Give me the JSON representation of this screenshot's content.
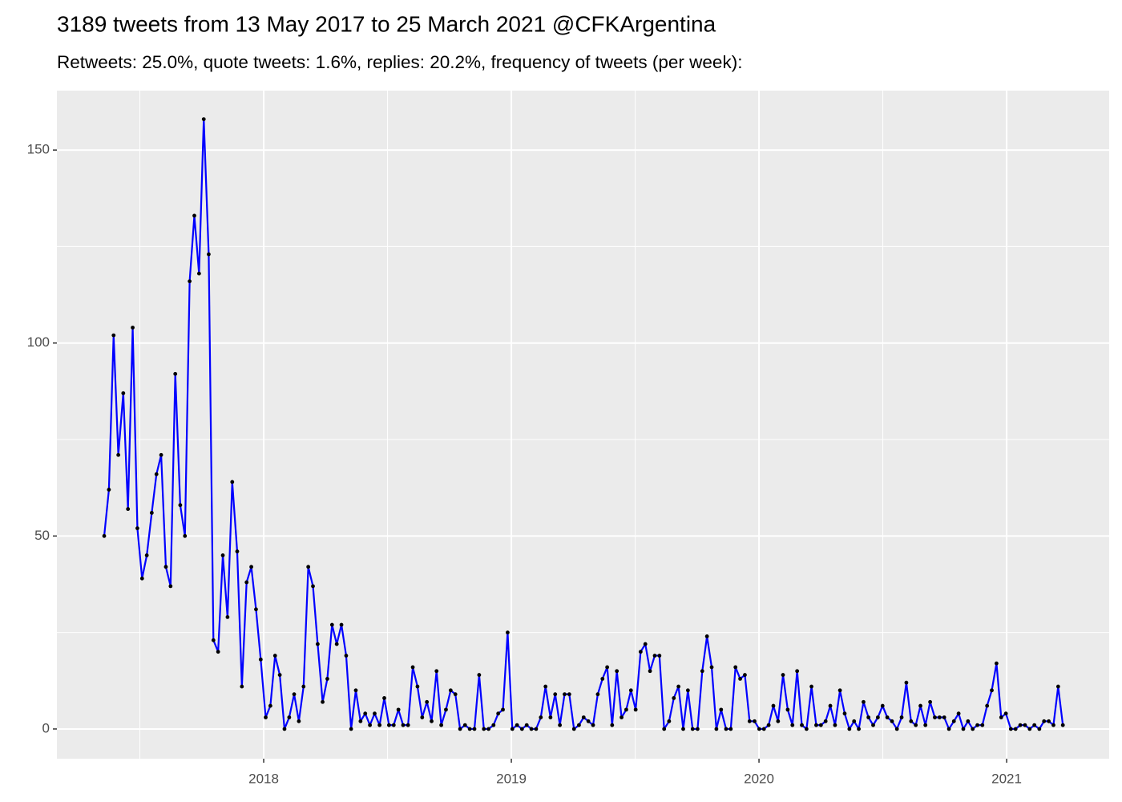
{
  "chart_data": {
    "type": "line",
    "title": "3189 tweets from 13 May 2017 to 25 March 2021 @CFKArgentina",
    "subtitle": "Retweets: 25.0%, quote tweets: 1.6%, replies: 20.2%, frequency of tweets (per week):",
    "x": [
      2017.356,
      2017.375,
      2017.394,
      2017.413,
      2017.433,
      2017.452,
      2017.471,
      2017.49,
      2017.509,
      2017.528,
      2017.548,
      2017.567,
      2017.586,
      2017.605,
      2017.624,
      2017.643,
      2017.663,
      2017.682,
      2017.701,
      2017.72,
      2017.739,
      2017.758,
      2017.778,
      2017.797,
      2017.816,
      2017.835,
      2017.854,
      2017.873,
      2017.893,
      2017.912,
      2017.931,
      2017.95,
      2017.969,
      2017.988,
      2018.008,
      2018.027,
      2018.046,
      2018.065,
      2018.084,
      2018.103,
      2018.123,
      2018.142,
      2018.161,
      2018.18,
      2018.199,
      2018.218,
      2018.238,
      2018.257,
      2018.276,
      2018.295,
      2018.314,
      2018.333,
      2018.353,
      2018.372,
      2018.391,
      2018.41,
      2018.429,
      2018.448,
      2018.468,
      2018.487,
      2018.506,
      2018.525,
      2018.544,
      2018.563,
      2018.583,
      2018.602,
      2018.621,
      2018.64,
      2018.659,
      2018.678,
      2018.698,
      2018.717,
      2018.736,
      2018.755,
      2018.774,
      2018.793,
      2018.813,
      2018.832,
      2018.851,
      2018.87,
      2018.889,
      2018.908,
      2018.928,
      2018.947,
      2018.966,
      2018.985,
      2019.004,
      2019.023,
      2019.043,
      2019.062,
      2019.081,
      2019.1,
      2019.119,
      2019.138,
      2019.158,
      2019.177,
      2019.196,
      2019.215,
      2019.234,
      2019.253,
      2019.273,
      2019.292,
      2019.311,
      2019.33,
      2019.349,
      2019.368,
      2019.387,
      2019.407,
      2019.426,
      2019.445,
      2019.464,
      2019.483,
      2019.502,
      2019.522,
      2019.541,
      2019.56,
      2019.579,
      2019.598,
      2019.617,
      2019.637,
      2019.656,
      2019.675,
      2019.694,
      2019.713,
      2019.732,
      2019.752,
      2019.771,
      2019.79,
      2019.809,
      2019.828,
      2019.847,
      2019.867,
      2019.886,
      2019.905,
      2019.924,
      2019.943,
      2019.962,
      2019.982,
      2020.001,
      2020.02,
      2020.039,
      2020.058,
      2020.077,
      2020.097,
      2020.116,
      2020.135,
      2020.154,
      2020.173,
      2020.192,
      2020.212,
      2020.231,
      2020.25,
      2020.269,
      2020.288,
      2020.307,
      2020.327,
      2020.346,
      2020.365,
      2020.384,
      2020.403,
      2020.422,
      2020.442,
      2020.461,
      2020.48,
      2020.499,
      2020.518,
      2020.537,
      2020.557,
      2020.576,
      2020.595,
      2020.614,
      2020.633,
      2020.652,
      2020.672,
      2020.691,
      2020.71,
      2020.729,
      2020.748,
      2020.767,
      2020.787,
      2020.806,
      2020.825,
      2020.844,
      2020.863,
      2020.882,
      2020.902,
      2020.921,
      2020.94,
      2020.959,
      2020.978,
      2020.997,
      2021.017,
      2021.036,
      2021.055,
      2021.074,
      2021.093,
      2021.112,
      2021.132,
      2021.151,
      2021.17,
      2021.189,
      2021.208,
      2021.227
    ],
    "values": [
      50,
      62,
      102,
      71,
      87,
      57,
      104,
      52,
      39,
      45,
      56,
      66,
      71,
      42,
      37,
      92,
      58,
      50,
      116,
      133,
      118,
      158,
      123,
      23,
      20,
      45,
      29,
      64,
      46,
      11,
      38,
      42,
      31,
      18,
      3,
      6,
      19,
      14,
      0,
      3,
      9,
      2,
      11,
      42,
      37,
      22,
      7,
      13,
      27,
      22,
      27,
      19,
      0,
      10,
      2,
      4,
      1,
      4,
      1,
      8,
      1,
      1,
      5,
      1,
      1,
      16,
      11,
      3,
      7,
      2,
      15,
      1,
      5,
      10,
      9,
      0,
      1,
      0,
      0,
      14,
      0,
      0,
      1,
      4,
      5,
      25,
      0,
      1,
      0,
      1,
      0,
      0,
      3,
      11,
      3,
      9,
      1,
      9,
      9,
      0,
      1,
      3,
      2,
      1,
      9,
      13,
      16,
      1,
      15,
      3,
      5,
      10,
      5,
      20,
      22,
      15,
      19,
      19,
      0,
      2,
      8,
      11,
      0,
      10,
      0,
      0,
      15,
      24,
      16,
      0,
      5,
      0,
      0,
      16,
      13,
      14,
      2,
      2,
      0,
      0,
      1,
      6,
      2,
      14,
      5,
      1,
      15,
      1,
      0,
      11,
      1,
      1,
      2,
      6,
      1,
      10,
      4,
      0,
      2,
      0,
      7,
      3,
      1,
      3,
      6,
      3,
      2,
      0,
      3,
      12,
      2,
      1,
      6,
      1,
      7,
      3,
      3,
      3,
      0,
      2,
      4,
      0,
      2,
      0,
      1,
      1,
      6,
      10,
      17,
      3,
      4,
      0,
      0,
      1,
      1,
      0,
      1,
      0,
      2,
      2,
      1,
      11,
      1
    ],
    "color": "#0000ff",
    "marker_color": "#000000",
    "xlim": [
      2017.165,
      2021.414
    ],
    "xticks": [
      2018,
      2019,
      2020,
      2021
    ],
    "minor_xticks": [
      2017.5,
      2018.5,
      2019.5,
      2020.5
    ],
    "ylim": [
      -7.7,
      165.4
    ],
    "yticks": [
      0,
      50,
      100,
      150
    ],
    "minor_yticks": [
      25,
      75,
      125
    ],
    "grid": true
  }
}
